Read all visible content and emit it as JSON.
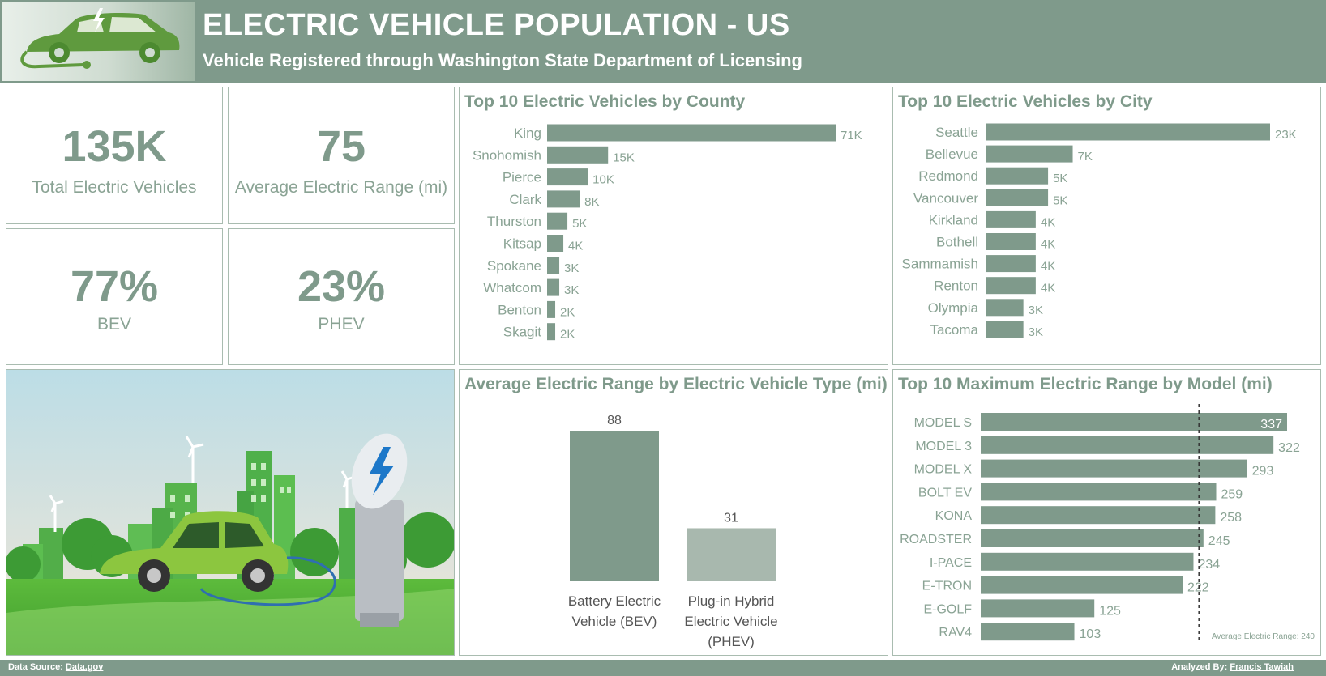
{
  "header": {
    "title": "ELECTRIC VEHICLE POPULATION - US",
    "subtitle": "Vehicle Registered through Washington State Department of Licensing"
  },
  "kpis": {
    "total": {
      "value": "135K",
      "label": "Total Electric Vehicles"
    },
    "range": {
      "value": "75",
      "label": "Average Electric Range (mi)"
    },
    "bev": {
      "value": "77%",
      "label": "BEV"
    },
    "phev": {
      "value": "23%",
      "label": "PHEV"
    }
  },
  "colors": {
    "primary": "#7f9a8b",
    "light": "#a8b8ae",
    "border": "#a9bcb0",
    "label": "#8aa394"
  },
  "illustration": {
    "icon": "ev-charging-city-illustration"
  },
  "logo": {
    "icon": "eco-car-plug-icon"
  },
  "chart_data": [
    {
      "type": "bar",
      "orientation": "horizontal",
      "title": "Top 10 Electric Vehicles by County",
      "categories": [
        "King",
        "Snohomish",
        "Pierce",
        "Clark",
        "Thurston",
        "Kitsap",
        "Spokane",
        "Whatcom",
        "Benton",
        "Skagit"
      ],
      "values": [
        71,
        15,
        10,
        8,
        5,
        4,
        3,
        3,
        2,
        2
      ],
      "labels": [
        "71K",
        "15K",
        "10K",
        "8K",
        "5K",
        "4K",
        "3K",
        "3K",
        "2K",
        "2K"
      ],
      "xlim": [
        0,
        71
      ]
    },
    {
      "type": "bar",
      "orientation": "horizontal",
      "title": "Top 10 Electric Vehicles by City",
      "categories": [
        "Seattle",
        "Bellevue",
        "Redmond",
        "Vancouver",
        "Kirkland",
        "Bothell",
        "Sammamish",
        "Renton",
        "Olympia",
        "Tacoma"
      ],
      "values": [
        23,
        7,
        5,
        5,
        4,
        4,
        4,
        4,
        3,
        3
      ],
      "labels": [
        "23K",
        "7K",
        "5K",
        "5K",
        "4K",
        "4K",
        "4K",
        "4K",
        "3K",
        "3K"
      ],
      "xlim": [
        0,
        23
      ]
    },
    {
      "type": "bar",
      "orientation": "vertical",
      "title": "Average Electric Range by Electric Vehicle Type (mi)",
      "categories": [
        [
          "Battery Electric",
          "Vehicle (BEV)"
        ],
        [
          "Plug-in Hybrid",
          "Electric Vehicle",
          "(PHEV)"
        ]
      ],
      "values": [
        88,
        31
      ],
      "ylim": [
        0,
        88
      ]
    },
    {
      "type": "bar",
      "orientation": "horizontal",
      "title": "Top 10 Maximum Electric Range by Model (mi)",
      "categories": [
        "MODEL S",
        "MODEL 3",
        "MODEL X",
        "BOLT EV",
        "KONA",
        "ROADSTER",
        "I-PACE",
        "E-TRON",
        "E-GOLF",
        "RAV4"
      ],
      "values": [
        337,
        322,
        293,
        259,
        258,
        245,
        234,
        222,
        125,
        103
      ],
      "xlim": [
        0,
        337
      ],
      "reference_line": {
        "value": 240,
        "label": "Average Electric Range: 240"
      }
    }
  ],
  "footer": {
    "source_label": "Data Source:",
    "source_link": "Data.gov",
    "author_label": "Analyzed By:",
    "author_link": "Francis Tawiah"
  }
}
